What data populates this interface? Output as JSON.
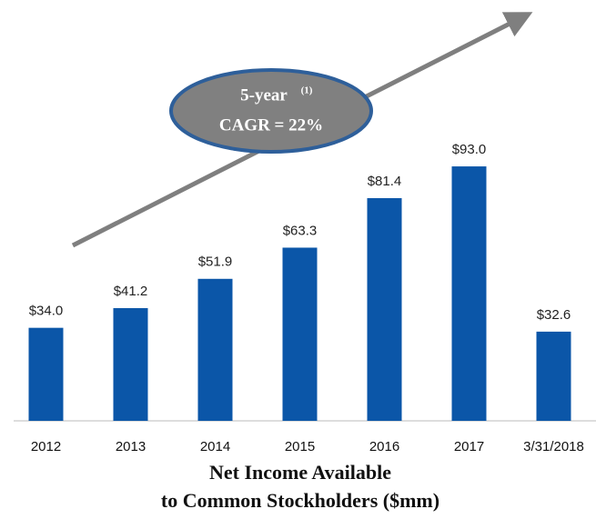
{
  "chart_data": {
    "type": "bar",
    "title": [
      "Net Income Available",
      "to Common Stockholders ($mm)"
    ],
    "annotation": {
      "label": "5-year",
      "footnote": "(1)",
      "text": "CAGR = 22%"
    },
    "categories": [
      "2012",
      "2013",
      "2014",
      "2015",
      "2016",
      "2017",
      "3/31/2018"
    ],
    "values": [
      34.0,
      41.2,
      51.9,
      63.3,
      81.4,
      93.0,
      32.6
    ],
    "value_labels": [
      "$34.0",
      "$41.2",
      "$51.9",
      "$63.3",
      "$81.4",
      "$93.0",
      "$32.6"
    ],
    "color": "#0b56a8"
  }
}
